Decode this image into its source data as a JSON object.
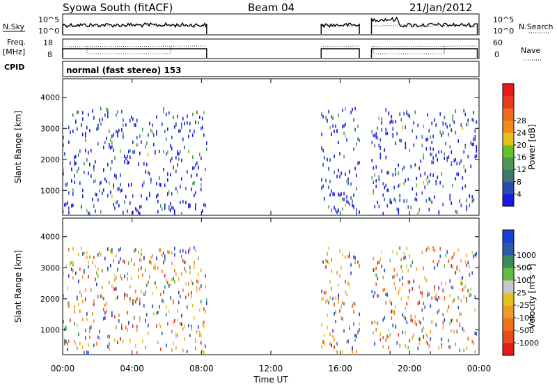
{
  "header": {
    "title": "Syowa South (fitACF)",
    "beam": "Beam 04",
    "date": "21/Jan/2012"
  },
  "top_panels": {
    "nsky_label": "N.Sky",
    "nsky_ticks": [
      "10^5",
      "10^0"
    ],
    "nsearch_label": "N.Search",
    "nsearch_ticks": [
      "10^5",
      "10^0"
    ],
    "freq_label": "Freq.",
    "freq_unit": "[MHz]",
    "freq_ticks": [
      "18",
      "8"
    ],
    "nave_label": "Nave",
    "nave_ticks": [
      "60",
      "0"
    ],
    "cpid_label": "CPID",
    "cpid_text": "normal (fast stereo) 153"
  },
  "colors": {
    "power_scale": [
      "#1a1ae6",
      "#2a4bb0",
      "#3a7a6a",
      "#4a9a55",
      "#66c22a",
      "#e6c21a",
      "#f08c1a",
      "#f26a1a",
      "#e83a1a",
      "#e61a1a"
    ],
    "velocity_scale": [
      "#1a3fd6",
      "#2a5aa8",
      "#3f8a5a",
      "#5fbf3f",
      "#c8c8c8",
      "#e6c21a",
      "#f09a2a",
      "#f0751a",
      "#e84a1a",
      "#e61a1a"
    ]
  },
  "chart_data": [
    {
      "type": "heatmap",
      "name": "power",
      "ylabel": "Slant Range [km]",
      "yticks": [
        1000,
        2000,
        3000,
        4000
      ],
      "ylim": [
        200,
        4600
      ],
      "xticks": [
        "00:00",
        "04:00",
        "08:00",
        "12:00",
        "16:00",
        "20:00",
        "00:00"
      ],
      "xlim": [
        0,
        24
      ],
      "colorbar_label": "Power [dB]",
      "colorbar_ticks": [
        4,
        8,
        12,
        16,
        20,
        24,
        28
      ],
      "data_intervals_ut": [
        [
          0.0,
          8.3
        ],
        [
          14.9,
          17.1
        ],
        [
          17.8,
          23.9
        ]
      ],
      "max_range_km": 3600
    },
    {
      "type": "heatmap",
      "name": "velocity",
      "ylabel": "Slant Range [km]",
      "yticks": [
        1000,
        2000,
        3000,
        4000
      ],
      "ylim": [
        200,
        4600
      ],
      "xticks": [
        "00:00",
        "04:00",
        "08:00",
        "12:00",
        "16:00",
        "20:00",
        "00:00"
      ],
      "xlim": [
        0,
        24
      ],
      "xlabel": "Time UT",
      "colorbar_label": "Velocity [m s⁻¹]",
      "colorbar_ticks": [
        "1000",
        "500",
        "100",
        "25",
        "-25",
        "-100",
        "-500",
        "-1000"
      ],
      "data_intervals_ut": [
        [
          0.0,
          8.3
        ],
        [
          14.9,
          17.1
        ],
        [
          17.8,
          23.9
        ]
      ],
      "max_range_km": 3600
    }
  ]
}
